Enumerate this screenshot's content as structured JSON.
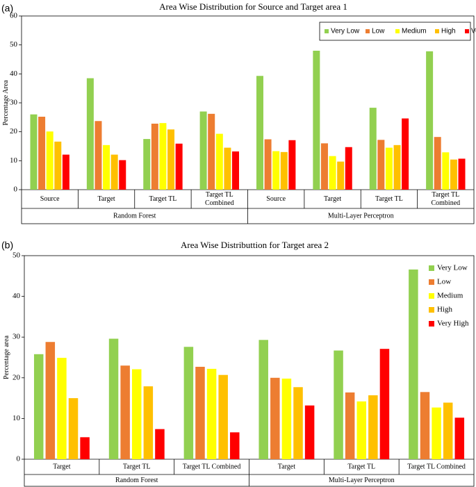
{
  "chart_data": [
    {
      "type": "bar",
      "panel_label": "(a)",
      "title": "Area Wise Distribution for Source and Target area 1",
      "ylabel": "Percentage Area",
      "xlabel": "",
      "ylim": [
        0,
        60
      ],
      "yticks": [
        0,
        10,
        20,
        30,
        40,
        50,
        60
      ],
      "legend_position": "top-right",
      "legend_boxed": true,
      "categories": [
        "Source",
        "Target",
        "Target TL",
        "Target TL Combined",
        "Source",
        "Target",
        "Target TL",
        "Target TL Combined"
      ],
      "category_lines": [
        [
          "Source"
        ],
        [
          "Target"
        ],
        [
          "Target TL"
        ],
        [
          "Target TL",
          "Combined"
        ],
        [
          "Source"
        ],
        [
          "Target"
        ],
        [
          "Target TL"
        ],
        [
          "Target TL",
          "Combined"
        ]
      ],
      "groups": [
        {
          "name": "Random Forest",
          "count": 4
        },
        {
          "name": "Multi-Layer Perceptron",
          "count": 4
        }
      ],
      "series": [
        {
          "name": "Very Low",
          "color": "#92d050",
          "values": [
            26.0,
            38.5,
            17.5,
            27.0,
            39.3,
            48.0,
            28.3,
            47.8
          ]
        },
        {
          "name": "Low",
          "color": "#ed7d31",
          "values": [
            25.2,
            23.7,
            22.8,
            26.2,
            17.4,
            16.0,
            17.2,
            18.2
          ]
        },
        {
          "name": "Medium",
          "color": "#ffff00",
          "values": [
            20.1,
            15.4,
            23.0,
            19.3,
            13.3,
            11.6,
            14.5,
            12.9
          ]
        },
        {
          "name": "High",
          "color": "#ffc000",
          "values": [
            16.6,
            12.1,
            20.8,
            14.5,
            13.0,
            9.7,
            15.4,
            10.4
          ]
        },
        {
          "name": "Very High",
          "color": "#ff0000",
          "values": [
            12.1,
            10.2,
            15.9,
            13.2,
            17.1,
            14.7,
            24.6,
            10.7
          ]
        }
      ]
    },
    {
      "type": "bar",
      "panel_label": "(b)",
      "title": "Area Wise Distributtion for Target area 2",
      "ylabel": "Percentage area",
      "xlabel": "",
      "ylim": [
        0,
        50
      ],
      "yticks": [
        0,
        10,
        20,
        30,
        40,
        50
      ],
      "legend_position": "top-right",
      "legend_boxed": false,
      "categories": [
        "Target",
        "Target TL",
        "Target TL Combined",
        "Target",
        "Target TL",
        "Target TL Combined"
      ],
      "category_lines": [
        [
          "Target"
        ],
        [
          "Target TL"
        ],
        [
          "Target TL Combined"
        ],
        [
          "Target"
        ],
        [
          "Target TL"
        ],
        [
          "Target TL Combined"
        ]
      ],
      "groups": [
        {
          "name": "Random Forest",
          "count": 3
        },
        {
          "name": "Multi-Layer Perceptron",
          "count": 3
        }
      ],
      "series": [
        {
          "name": "Very Low",
          "color": "#92d050",
          "values": [
            25.8,
            29.6,
            27.6,
            29.3,
            26.7,
            46.6
          ]
        },
        {
          "name": "Low",
          "color": "#ed7d31",
          "values": [
            28.8,
            23.0,
            22.7,
            20.0,
            16.4,
            16.5
          ]
        },
        {
          "name": "Medium",
          "color": "#ffff00",
          "values": [
            24.9,
            22.1,
            22.2,
            19.8,
            14.2,
            12.7
          ]
        },
        {
          "name": "High",
          "color": "#ffc000",
          "values": [
            15.0,
            17.9,
            20.7,
            17.7,
            15.7,
            13.9
          ]
        },
        {
          "name": "Very High",
          "color": "#ff0000",
          "values": [
            5.4,
            7.4,
            6.6,
            13.2,
            27.1,
            10.2
          ]
        }
      ]
    }
  ]
}
